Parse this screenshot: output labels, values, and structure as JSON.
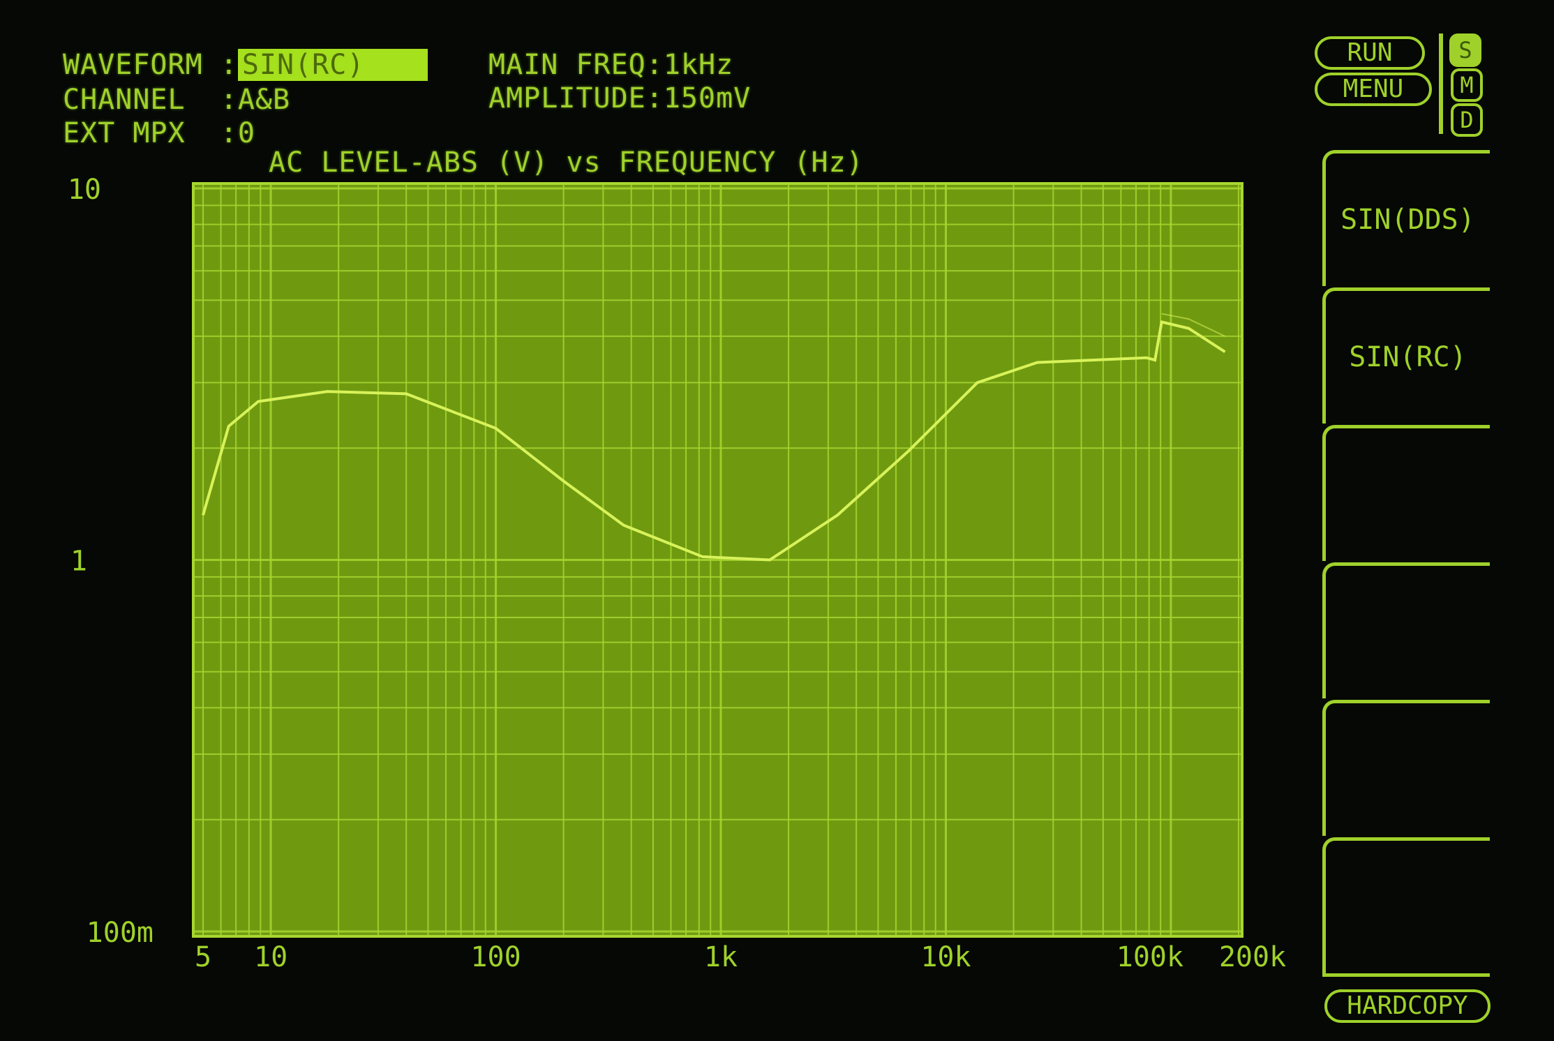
{
  "header": {
    "waveform_label": "WAVEFORM :",
    "waveform_value": "SIN(RC)",
    "channel_label": "CHANNEL  :",
    "channel_value": "A&B",
    "extmpx_label": "EXT MPX  :",
    "extmpx_value": "0",
    "main_freq": "MAIN FREQ:1kHz",
    "amplitude": "AMPLITUDE:150mV"
  },
  "status": {
    "run_label": "RUN",
    "menu_label": "MENU",
    "modes": [
      {
        "label": "S",
        "active": true
      },
      {
        "label": "M",
        "active": false
      },
      {
        "label": "D",
        "active": false
      }
    ]
  },
  "softkeys": [
    "SIN(DDS)",
    "SIN(RC)",
    "",
    "",
    "",
    ""
  ],
  "hardcopy_label": "HARDCOPY",
  "colors": {
    "trace": "#d8f25a",
    "plot_bg": "#6f9a10",
    "grid": "#a8d630",
    "text": "#9fd12a"
  },
  "chart_data": {
    "type": "line",
    "title": "AC LEVEL-ABS (V) vs FREQUENCY (Hz)",
    "x_scale": "log",
    "y_scale": "log",
    "xlim": [
      5,
      200000
    ],
    "ylim": [
      0.1,
      10
    ],
    "grid": true,
    "x_ticks": [
      {
        "value": 5,
        "label": "5"
      },
      {
        "value": 10,
        "label": "10"
      },
      {
        "value": 100,
        "label": "100"
      },
      {
        "value": 1000,
        "label": "1k"
      },
      {
        "value": 10000,
        "label": "10k"
      },
      {
        "value": 100000,
        "label": "100k"
      },
      {
        "value": 200000,
        "label": "200k"
      }
    ],
    "y_ticks": [
      {
        "value": 10,
        "label": "10"
      },
      {
        "value": 1,
        "label": "1"
      },
      {
        "value": 0.1,
        "label": "100m"
      }
    ],
    "series": [
      {
        "x": [
          5,
          6.5,
          8.8,
          17.8,
          40,
          100,
          200,
          370,
          830,
          1650,
          3300,
          6800,
          13800,
          25500,
          78000,
          85000,
          91000,
          120000,
          174000
        ],
        "y": [
          1.32,
          2.29,
          2.67,
          2.84,
          2.8,
          2.26,
          1.63,
          1.24,
          1.02,
          1.0,
          1.32,
          1.96,
          3.0,
          3.4,
          3.5,
          3.45,
          4.37,
          4.2,
          3.63
        ]
      },
      {
        "x": [
          91000,
          120000,
          174000
        ],
        "y": [
          4.6,
          4.45,
          4.0
        ]
      }
    ]
  }
}
